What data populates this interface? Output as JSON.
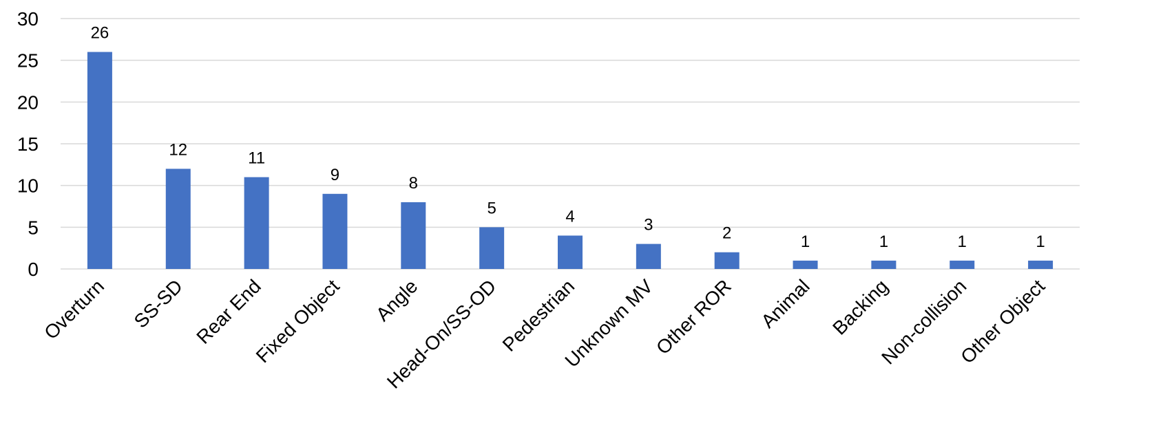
{
  "chart_data": {
    "type": "bar",
    "title": "",
    "xlabel": "",
    "ylabel": "",
    "categories": [
      "Overturn",
      "SS-SD",
      "Rear End",
      "Fixed Object",
      "Angle",
      "Head-On/SS-OD",
      "Pedestrian",
      "Unknown MV",
      "Other ROR",
      "Animal",
      "Backing",
      "Non-collision",
      "Other Object"
    ],
    "values": [
      26,
      12,
      11,
      9,
      8,
      5,
      4,
      3,
      2,
      1,
      1,
      1,
      1
    ],
    "data_labels": [
      "26",
      "12",
      "11",
      "9",
      "8",
      "5",
      "4",
      "3",
      "2",
      "1",
      "1",
      "1",
      "1"
    ],
    "ylim": [
      0,
      30
    ],
    "yticks": [
      0,
      5,
      10,
      15,
      20,
      25,
      30
    ],
    "ytick_labels": [
      "0",
      "5",
      "10",
      "15",
      "20",
      "25",
      "30"
    ],
    "grid": true,
    "legend": "none",
    "bar_color": "#4472c4",
    "grid_color": "#d9d9d9"
  }
}
